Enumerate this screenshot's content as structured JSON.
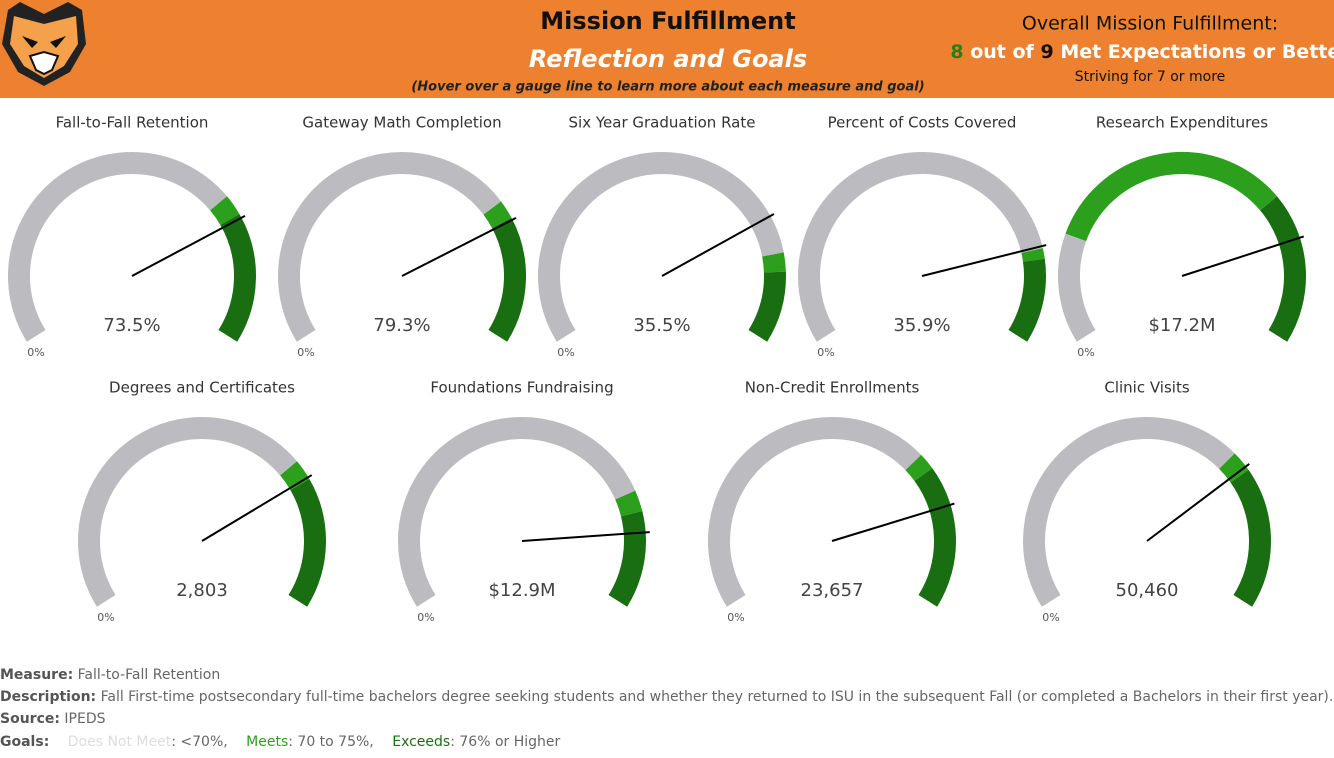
{
  "header": {
    "title": "Mission Fulfillment",
    "subtitle": "Reflection and Goals",
    "hint": "(Hover over a gauge line to learn more about each measure and goal)",
    "overall": {
      "title": "Overall Mission Fulfillment:",
      "met": "8",
      "out_of": "out of",
      "total": "9",
      "suffix": "Met Expectations or Better",
      "goal": "Striving for 7 or more"
    }
  },
  "gauges": [
    {
      "title": "Fall-to-Fall Retention",
      "value": "73.5%",
      "min_label": "0%"
    },
    {
      "title": "Gateway Math Completion",
      "value": "79.3%",
      "min_label": "0%"
    },
    {
      "title": "Six Year Graduation Rate",
      "value": "35.5%",
      "min_label": "0%"
    },
    {
      "title": "Percent of Costs Covered",
      "value": "35.9%",
      "min_label": "0%"
    },
    {
      "title": "Research Expenditures",
      "value": "$17.2M",
      "min_label": "0%"
    },
    {
      "title": "Degrees and Certificates",
      "value": "2,803",
      "min_label": "0%"
    },
    {
      "title": "Foundations Fundraising",
      "value": "$12.9M",
      "min_label": "0%"
    },
    {
      "title": "Non-Credit Enrollments",
      "value": "23,657",
      "min_label": "0%"
    },
    {
      "title": "Clinic Visits",
      "value": "50,460",
      "min_label": "0%"
    }
  ],
  "footer": {
    "measure_label": "Measure:",
    "measure": "Fall-to-Fall Retention",
    "description_label": "Description:",
    "description": "Fall First-time postsecondary full-time bachelors degree seeking students and whether they returned to ISU in the subsequent Fall (or completed a Bachelors in their first year).",
    "source_label": "Source:",
    "source": "IPEDS",
    "goals_label": "Goals:",
    "goals": [
      {
        "name": "Does Not Meet",
        "text": ": <70%,"
      },
      {
        "name": "Meets",
        "text": ": 70 to 75%,"
      },
      {
        "name": "Exceeds",
        "text": ": 76% or Higher"
      }
    ]
  }
}
